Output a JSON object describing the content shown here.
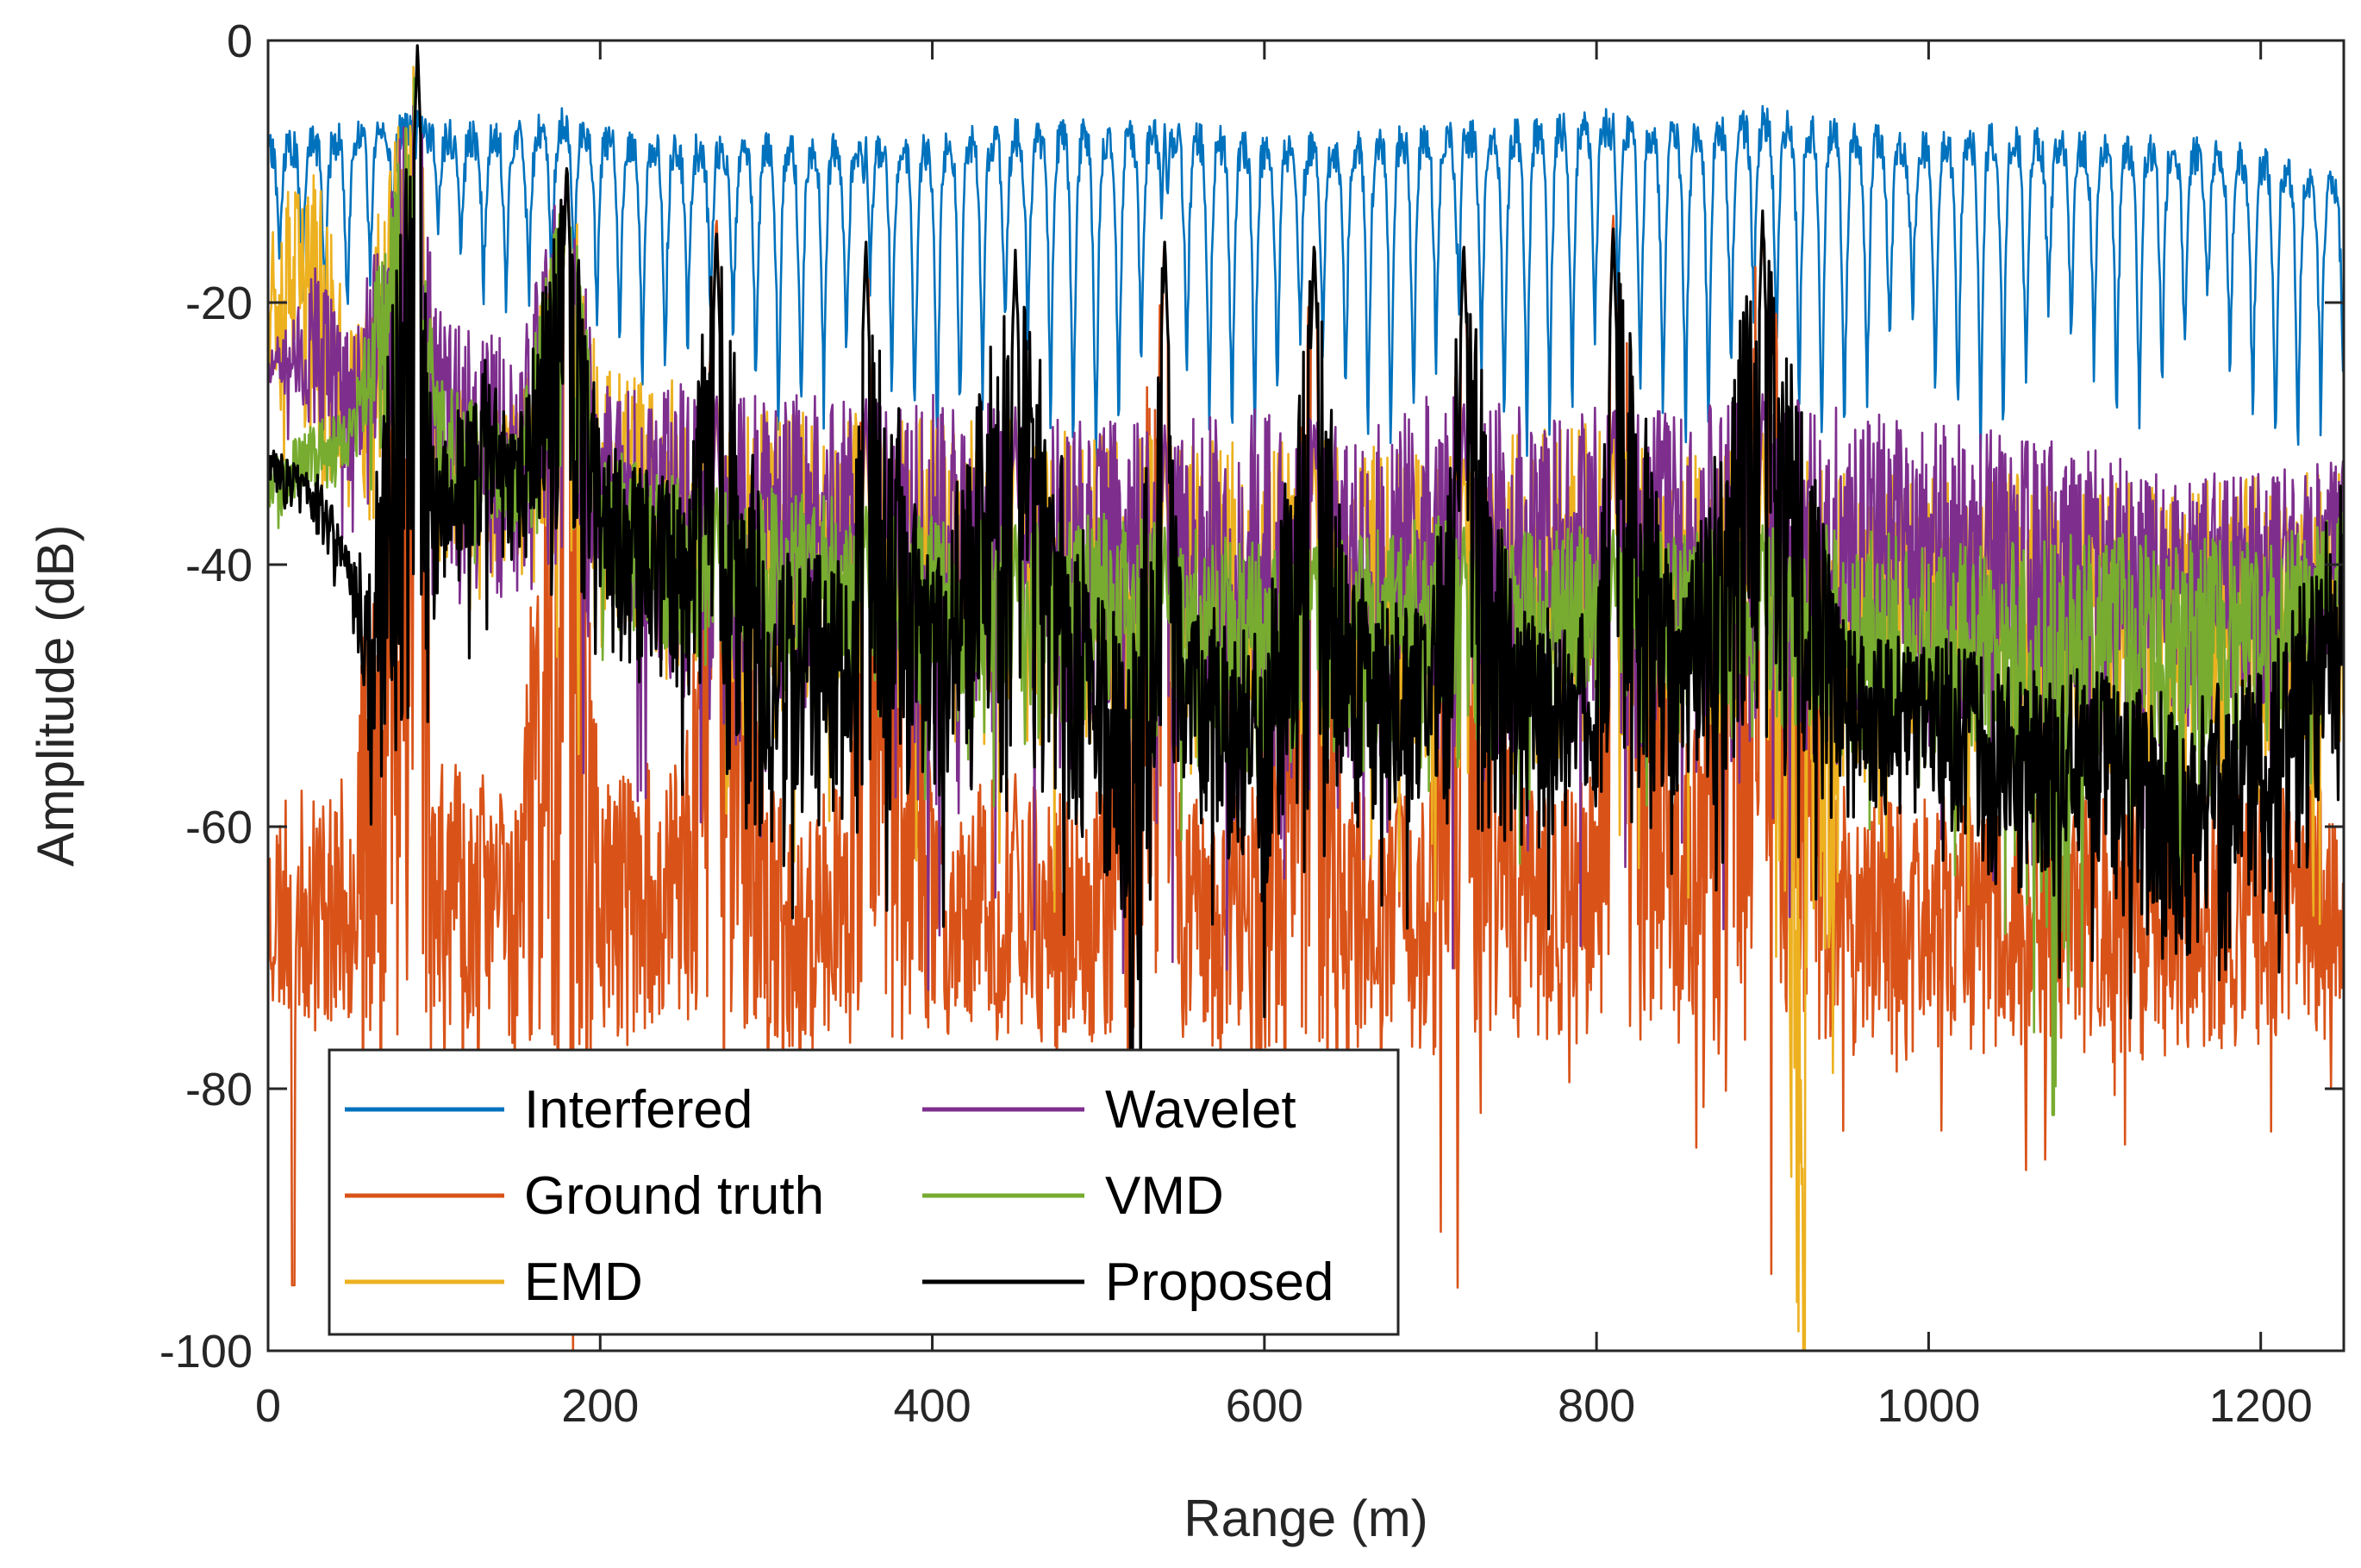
{
  "chart_data": {
    "type": "line",
    "title": "",
    "xlabel": "Range (m)",
    "ylabel": "Amplitude (dB)",
    "xlim": [
      0,
      1250
    ],
    "ylim": [
      -100,
      0
    ],
    "x_ticks": [
      0,
      200,
      400,
      600,
      800,
      1000,
      1200
    ],
    "y_ticks": [
      0,
      -20,
      -40,
      -60,
      -80,
      -100
    ],
    "x_tick_labels": [
      "0",
      "200",
      "400",
      "600",
      "800",
      "1000",
      "1200"
    ],
    "y_tick_labels": [
      "0",
      "-20",
      "-40",
      "-60",
      "-80",
      "-100"
    ],
    "grid": false,
    "legend_position": "bottom-left",
    "target_peaks_m": [
      90,
      180,
      270,
      360,
      450,
      540,
      630,
      720,
      810,
      900
    ],
    "series": [
      {
        "name": "Interfered",
        "color": "#0072BD",
        "x": [
          0,
          50,
          90,
          100,
          150,
          180,
          200,
          250,
          300,
          350,
          400,
          450,
          500,
          550,
          600,
          650,
          700,
          750,
          800,
          850,
          900,
          950,
          1000,
          1050,
          1100,
          1150,
          1200,
          1250
        ],
        "values": [
          -7,
          -6,
          -5,
          -6,
          -6,
          -5,
          -6,
          -7,
          -7,
          -7,
          -7,
          -6,
          -6,
          -6,
          -7,
          -7,
          -6,
          -6,
          -5,
          -6,
          -5,
          -6,
          -7,
          -6,
          -7,
          -7,
          -8,
          -10
        ],
        "lower_envelope": [
          -20,
          -20,
          -10,
          -14,
          -20,
          -24,
          -24,
          -26,
          -28,
          -30,
          -30,
          -30,
          -32,
          -30,
          -30,
          -30,
          -30,
          -30,
          -30,
          -30,
          -30,
          -30,
          -30,
          -30,
          -28,
          -28,
          -30,
          -32
        ]
      },
      {
        "name": "Ground truth",
        "color": "#D95319",
        "x": [
          0,
          50,
          90,
          100,
          150,
          180,
          200,
          250,
          270,
          300,
          350,
          360,
          400,
          450,
          500,
          540,
          550,
          600,
          630,
          650,
          700,
          720,
          750,
          800,
          810,
          850,
          900,
          950,
          1000,
          1050,
          1100,
          1150,
          1200,
          1250
        ],
        "values": [
          -58,
          -56,
          0,
          -55,
          -56,
          -9,
          -55,
          -55,
          -13,
          -57,
          -57,
          -15,
          -57,
          -56,
          -56,
          -15,
          -57,
          -57,
          -15,
          -57,
          -56,
          -15,
          -57,
          -56,
          -13,
          -56,
          -13,
          -57,
          -57,
          -58,
          -57,
          -57,
          -57,
          -56
        ],
        "lower_envelope": [
          -75,
          -76,
          -76,
          -76,
          -77,
          -77,
          -77,
          -76,
          -77,
          -77,
          -77,
          -77,
          -76,
          -77,
          -77,
          -77,
          -77,
          -77,
          -77,
          -77,
          -77,
          -77,
          -77,
          -77,
          -77,
          -77,
          -78,
          -78,
          -78,
          -78,
          -78,
          -78,
          -77,
          -76
        ],
        "min": -95
      },
      {
        "name": "EMD",
        "color": "#EDB120",
        "x": [
          0,
          30,
          50,
          90,
          100,
          150,
          180,
          200,
          250,
          300,
          350,
          400,
          450,
          500,
          550,
          600,
          650,
          700,
          750,
          800,
          850,
          900,
          925,
          950,
          1000,
          1050,
          1100,
          1150,
          1200,
          1250
        ],
        "values": [
          -12,
          -10,
          -22,
          0,
          -25,
          -28,
          -9,
          -25,
          -26,
          -28,
          -28,
          -29,
          -28,
          -30,
          -30,
          -30,
          -30,
          -32,
          -30,
          -29,
          -32,
          -30,
          -32,
          -33,
          -33,
          -33,
          -33,
          -34,
          -33,
          -33
        ],
        "lower_envelope": [
          -27,
          -35,
          -38,
          -38,
          -40,
          -42,
          -45,
          -48,
          -50,
          -55,
          -50,
          -55,
          -55,
          -57,
          -58,
          -58,
          -57,
          -56,
          -57,
          -56,
          -55,
          -55,
          -100,
          -57,
          -57,
          -58,
          -58,
          -58,
          -60,
          -56
        ]
      },
      {
        "name": "Wavelet",
        "color": "#7E2F8E",
        "x": [
          0,
          30,
          50,
          90,
          100,
          150,
          180,
          200,
          250,
          300,
          350,
          400,
          450,
          500,
          550,
          600,
          650,
          700,
          750,
          800,
          850,
          900,
          950,
          1000,
          1050,
          1100,
          1150,
          1200,
          1250
        ],
        "values": [
          -24,
          -17,
          -23,
          0,
          -20,
          -23,
          -9,
          -26,
          -26,
          -27,
          -27,
          -27,
          -28,
          -29,
          -29,
          -28,
          -29,
          -27,
          -27,
          -28,
          -28,
          -27,
          -28,
          -29,
          -30,
          -31,
          -33,
          -33,
          -32
        ],
        "lower_envelope": [
          -28,
          -30,
          -35,
          -38,
          -44,
          -45,
          -46,
          -48,
          -52,
          -56,
          -50,
          -60,
          -55,
          -58,
          -60,
          -60,
          -60,
          -57,
          -58,
          -58,
          -56,
          -56,
          -54,
          -54,
          -55,
          -55,
          -54,
          -55,
          -48
        ]
      },
      {
        "name": "VMD",
        "color": "#77AC30",
        "x": [
          0,
          30,
          50,
          90,
          100,
          150,
          180,
          200,
          250,
          300,
          350,
          400,
          450,
          500,
          550,
          600,
          650,
          700,
          750,
          800,
          850,
          900,
          950,
          1000,
          1050,
          1075,
          1100,
          1150,
          1200,
          1250
        ],
        "values": [
          -32,
          -29,
          -28,
          0,
          -25,
          -30,
          -9,
          -31,
          -33,
          -34,
          -35,
          -36,
          -37,
          -36,
          -37,
          -38,
          -38,
          -36,
          -37,
          -37,
          -37,
          -37,
          -37,
          -38,
          -38,
          -38,
          -37,
          -38,
          -38,
          -36
        ],
        "lower_envelope": [
          -36,
          -35,
          -34,
          -35,
          -36,
          -38,
          -40,
          -44,
          -48,
          -50,
          -52,
          -52,
          -54,
          -54,
          -55,
          -58,
          -56,
          -55,
          -55,
          -54,
          -55,
          -54,
          -56,
          -57,
          -60,
          -82,
          -58,
          -58,
          -58,
          -50
        ]
      },
      {
        "name": "Proposed",
        "color": "#000000",
        "x": [
          0,
          30,
          50,
          60,
          90,
          100,
          130,
          150,
          180,
          200,
          250,
          270,
          300,
          350,
          360,
          400,
          450,
          500,
          520,
          540,
          550,
          600,
          630,
          650,
          700,
          720,
          750,
          800,
          810,
          850,
          900,
          950,
          1000,
          1050,
          1100,
          1150,
          1200,
          1250
        ],
        "values": [
          -31,
          -33,
          -38,
          -40,
          0,
          -32,
          -24,
          -30,
          -9,
          -30,
          -34,
          -14,
          -38,
          -40,
          -15,
          -40,
          -16,
          -42,
          -45,
          -15,
          -42,
          -45,
          -15,
          -40,
          -44,
          -15,
          -42,
          -44,
          -14,
          -44,
          -13,
          -45,
          -45,
          -48,
          -48,
          -50,
          -48,
          -33
        ],
        "lower_envelope": [
          -34,
          -38,
          -44,
          -55,
          -52,
          -44,
          -40,
          -40,
          -44,
          -48,
          -52,
          -58,
          -62,
          -60,
          -62,
          -58,
          -60,
          -62,
          -77,
          -60,
          -60,
          -66,
          -64,
          -62,
          -60,
          -62,
          -62,
          -60,
          -62,
          -60,
          -58,
          -60,
          -60,
          -66,
          -65,
          -72,
          -72,
          -60
        ]
      }
    ]
  }
}
